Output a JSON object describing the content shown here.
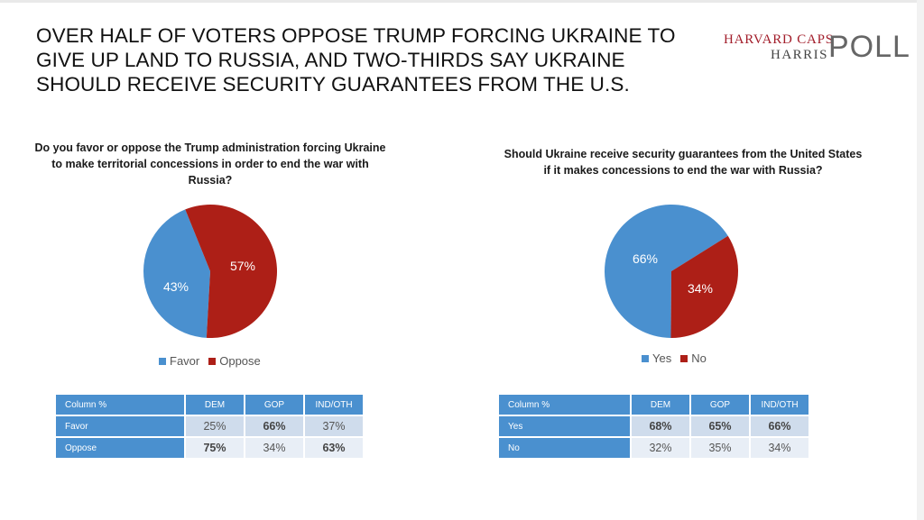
{
  "title_lines": [
    "OVER HALF OF VOTERS OPPOSE TRUMP FORCING UKRAINE TO",
    "GIVE UP LAND TO RUSSIA, AND TWO-THIRDS SAY UKRAINE",
    "SHOULD RECEIVE SECURITY GUARANTEES FROM THE U.S."
  ],
  "logo": {
    "line1": "HARVARD CAPS",
    "line2": "HARRIS",
    "word": "POLL"
  },
  "colors": {
    "blue": "#4a90cf",
    "red": "#ad1f17"
  },
  "chart_data": [
    {
      "type": "pie",
      "title": "Do you favor or oppose the Trump administration forcing Ukraine to make territorial concessions in order to end the war with Russia?",
      "categories": [
        "Favor",
        "Oppose"
      ],
      "values": [
        43,
        57
      ],
      "labels": [
        "43%",
        "57%"
      ],
      "colors": [
        "#4a90cf",
        "#ad1f17"
      ],
      "legend_position": "bottom"
    },
    {
      "type": "pie",
      "title": "Should Ukraine receive security guarantees from the United States if it makes concessions to end the war with Russia?",
      "categories": [
        "Yes",
        "No"
      ],
      "values": [
        66,
        34
      ],
      "labels": [
        "66%",
        "34%"
      ],
      "colors": [
        "#4a90cf",
        "#ad1f17"
      ],
      "legend_position": "bottom"
    },
    {
      "type": "table",
      "columns": [
        "Column %",
        "DEM",
        "GOP",
        "IND/OTH"
      ],
      "rows": [
        {
          "label": "Favor",
          "cells": [
            {
              "text": "25%",
              "bold": false
            },
            {
              "text": "66%",
              "bold": true
            },
            {
              "text": "37%",
              "bold": false
            }
          ]
        },
        {
          "label": "Oppose",
          "cells": [
            {
              "text": "75%",
              "bold": true
            },
            {
              "text": "34%",
              "bold": false
            },
            {
              "text": "63%",
              "bold": true
            }
          ]
        }
      ]
    },
    {
      "type": "table",
      "columns": [
        "Column %",
        "DEM",
        "GOP",
        "IND/OTH"
      ],
      "rows": [
        {
          "label": "Yes",
          "cells": [
            {
              "text": "68%",
              "bold": true
            },
            {
              "text": "65%",
              "bold": true
            },
            {
              "text": "66%",
              "bold": true
            }
          ]
        },
        {
          "label": "No",
          "cells": [
            {
              "text": "32%",
              "bold": false
            },
            {
              "text": "35%",
              "bold": false
            },
            {
              "text": "34%",
              "bold": false
            }
          ]
        }
      ]
    }
  ]
}
